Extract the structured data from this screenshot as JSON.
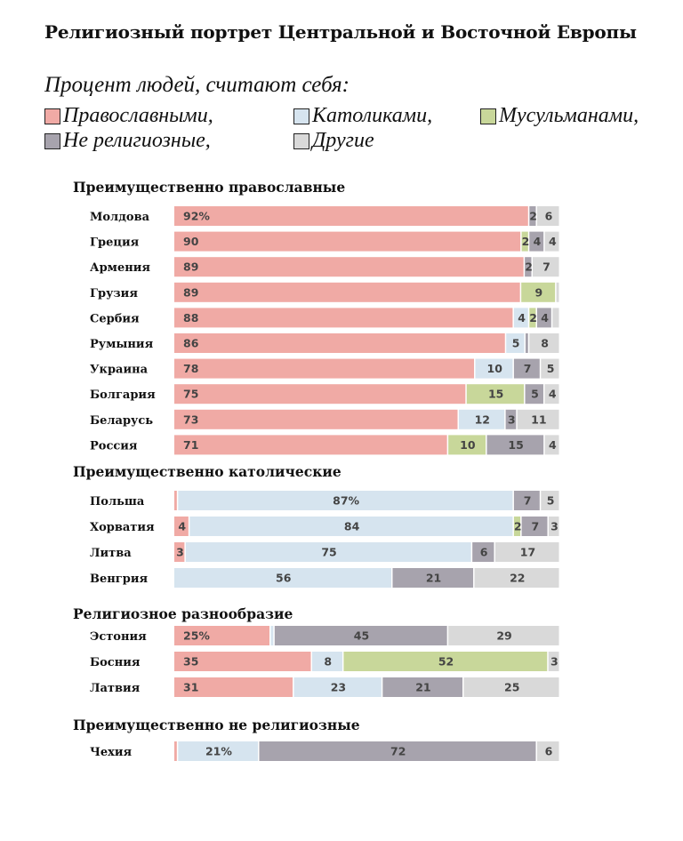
{
  "title": "Религиозный портрет Центральной и Восточной Европы",
  "subtitle": "Процент людей, считают себя:",
  "legend": [
    {
      "label": "Православными,",
      "color": "#f0aaa5"
    },
    {
      "label": "Католиками,",
      "color": "#d6e4ef"
    },
    {
      "label": "Мусульманами,",
      "color": "#c8d79a"
    },
    {
      "label": "Не религиозные,",
      "color": "#a7a3ad"
    },
    {
      "label": "Другие",
      "color": "#d9d9d9"
    }
  ],
  "chart_data": {
    "type": "bar",
    "stacked": true,
    "orientation": "horizontal",
    "xlim": [
      0,
      100
    ],
    "series_names": [
      "Православными,",
      "Католиками,",
      "Мусульманами,",
      "Не религиозные,",
      "Другие"
    ],
    "colors": [
      "#f0aaa5",
      "#d6e4ef",
      "#c8d79a",
      "#a7a3ad",
      "#d9d9d9"
    ],
    "groups": [
      {
        "title": "Преимущественно православные",
        "rows": [
          {
            "country": "Молдова",
            "values": [
              92,
              0,
              0,
              2,
              6
            ],
            "labels": [
              "92%",
              "",
              "",
              "2",
              "6"
            ]
          },
          {
            "country": "Греция",
            "values": [
              90,
              0,
              2,
              4,
              4
            ],
            "labels": [
              "90",
              "",
              "2",
              "4",
              "4"
            ]
          },
          {
            "country": "Армения",
            "values": [
              89,
              0,
              0,
              2,
              7
            ],
            "labels": [
              "89",
              "",
              "",
              "2",
              "7"
            ]
          },
          {
            "country": "Грузия",
            "values": [
              89,
              0,
              9,
              0,
              1
            ],
            "labels": [
              "89",
              "",
              "9",
              "",
              ""
            ]
          },
          {
            "country": "Сербия",
            "values": [
              88,
              4,
              2,
              4,
              2
            ],
            "labels": [
              "88",
              "4",
              "2",
              "4",
              ""
            ]
          },
          {
            "country": "Румыния",
            "values": [
              86,
              5,
              0,
              1,
              8
            ],
            "labels": [
              "86",
              "5",
              "",
              "",
              "8"
            ]
          },
          {
            "country": "Украина",
            "values": [
              78,
              10,
              0,
              7,
              5
            ],
            "labels": [
              "78",
              "10",
              "",
              "7",
              "5"
            ]
          },
          {
            "country": "Болгария",
            "values": [
              75,
              0,
              15,
              5,
              4
            ],
            "labels": [
              "75",
              "",
              "15",
              "5",
              "4"
            ]
          },
          {
            "country": "Беларусь",
            "values": [
              73,
              12,
              0,
              3,
              11
            ],
            "labels": [
              "73",
              "12",
              "",
              "3",
              "11"
            ]
          },
          {
            "country": "Россия",
            "values": [
              71,
              0,
              10,
              15,
              4
            ],
            "labels": [
              "71",
              "",
              "10",
              "15",
              "4"
            ]
          }
        ]
      },
      {
        "title": "Преимущественно католические",
        "rows": [
          {
            "country": "Польша",
            "values": [
              1,
              87,
              0,
              7,
              5
            ],
            "labels": [
              "",
              "87%",
              "",
              "7",
              "5"
            ]
          },
          {
            "country": "Хорватия",
            "values": [
              4,
              84,
              2,
              7,
              3
            ],
            "labels": [
              "4",
              "84",
              "2",
              "7",
              "3"
            ]
          },
          {
            "country": "Литва",
            "values": [
              3,
              75,
              0,
              6,
              17
            ],
            "labels": [
              "3",
              "75",
              "",
              "6",
              "17"
            ]
          },
          {
            "country": "Венгрия",
            "values": [
              0,
              56,
              0,
              21,
              22
            ],
            "labels": [
              "",
              "56",
              "",
              "21",
              "22"
            ]
          }
        ]
      },
      {
        "title": "Религиозное разнообразие",
        "rows": [
          {
            "country": "Эстония",
            "values": [
              25,
              1,
              0,
              45,
              29
            ],
            "labels": [
              "25%",
              "",
              "",
              "45",
              "29"
            ]
          },
          {
            "country": "Босния",
            "values": [
              35,
              8,
              52,
              0,
              3
            ],
            "labels": [
              "35",
              "8",
              "52",
              "",
              "3"
            ]
          },
          {
            "country": "Латвия",
            "values": [
              31,
              23,
              0,
              21,
              25
            ],
            "labels": [
              "31",
              "23",
              "",
              "21",
              "25"
            ]
          }
        ]
      },
      {
        "title": "Преимущественно не религиозные",
        "rows": [
          {
            "country": "Чехия",
            "values": [
              1,
              21,
              0,
              72,
              6
            ],
            "labels": [
              "",
              "21%",
              "",
              "72",
              "6"
            ]
          }
        ]
      }
    ]
  }
}
